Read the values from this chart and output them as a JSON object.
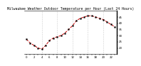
{
  "title": "Milwaukee Weather Outdoor Temperature per Hour (Last 24 Hours)",
  "hours": [
    0,
    1,
    2,
    3,
    4,
    5,
    6,
    7,
    8,
    9,
    10,
    11,
    12,
    13,
    14,
    15,
    16,
    17,
    18,
    19,
    20,
    21,
    22,
    23
  ],
  "temps": [
    27,
    24,
    22,
    20,
    19,
    22,
    26,
    28,
    29,
    30,
    32,
    35,
    38,
    42,
    44,
    45,
    46,
    46,
    45,
    44,
    43,
    41,
    39,
    37
  ],
  "line_color": "#cc0000",
  "marker_color": "#000000",
  "bg_color": "#ffffff",
  "grid_color": "#999999",
  "ylabel_color": "#000000",
  "title_color": "#000000",
  "ymin": 15,
  "ymax": 50,
  "yticks": [
    20,
    25,
    30,
    35,
    40,
    45
  ],
  "grid_hours": [
    4,
    8,
    12,
    16,
    20
  ],
  "xlabel_fontsize": 2.8,
  "ylabel_fontsize": 2.8,
  "title_fontsize": 3.5
}
